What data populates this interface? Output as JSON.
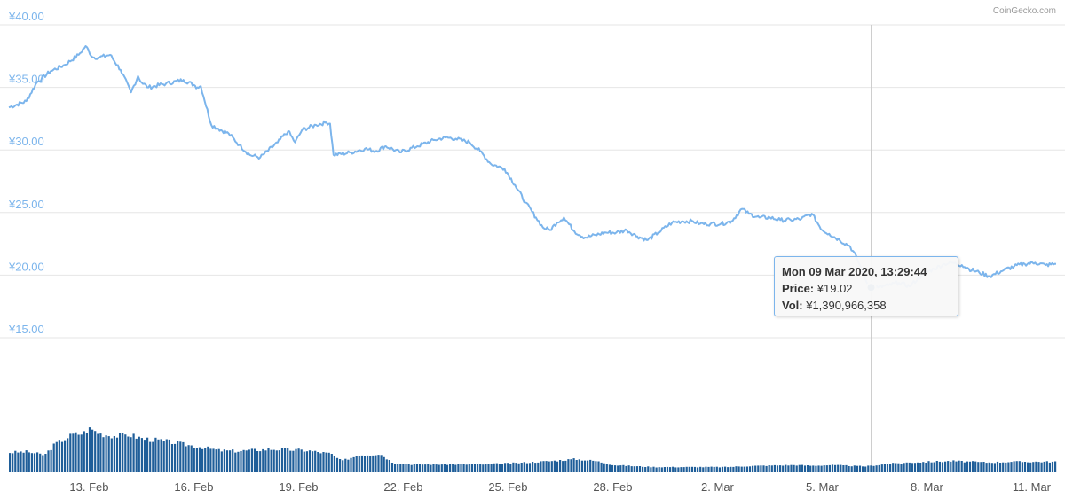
{
  "credit": "CoinGecko.com",
  "colors": {
    "line": "#7cb5ec",
    "volume": "#1f5e99",
    "grid": "#e6e6e6",
    "crosshair": "#cccccc",
    "marker": "#0f5b9e"
  },
  "tooltip": {
    "date": "Mon 09 Mar 2020, 13:29:44",
    "price_label": "Price:",
    "price": "¥19.02",
    "vol_label": "Vol:",
    "vol": "¥1,390,966,358"
  },
  "chart_data": {
    "type": "line",
    "y_axis": {
      "range": [
        15,
        40
      ],
      "ticks": [
        15,
        20,
        25,
        30,
        35,
        40
      ],
      "tick_labels": [
        "¥15.00",
        "¥20.00",
        "¥25.00",
        "¥30.00",
        "¥35.00",
        "¥40.00"
      ]
    },
    "x_axis": {
      "range_days": [
        0,
        30
      ],
      "ticks": [
        2.3,
        5.3,
        8.3,
        11.3,
        14.3,
        17.3,
        20.3,
        23.3,
        26.3,
        29.3
      ],
      "tick_labels": [
        "13. Feb",
        "16. Feb",
        "19. Feb",
        "22. Feb",
        "25. Feb",
        "28. Feb",
        "2. Mar",
        "5. Mar",
        "8. Mar",
        "11. Mar"
      ]
    },
    "grid": "horizontal",
    "series": [
      {
        "values_x": [
          0,
          0.5,
          0.8,
          1.2,
          1.6,
          2.0,
          2.2,
          2.4,
          2.6,
          2.9,
          3.2,
          3.5,
          3.7,
          3.8,
          4.0,
          4.5,
          5.0,
          5.3,
          5.4,
          5.5,
          5.8,
          6.0,
          6.3,
          6.6,
          6.9,
          7.2,
          7.7,
          8.0,
          8.2,
          8.4,
          8.8,
          9.1,
          9.2,
          9.3,
          9.8,
          10.2,
          10.5,
          10.8,
          11.2,
          11.7,
          12.2,
          12.5,
          12.8,
          13.2,
          13.5,
          13.8,
          14.2,
          14.5,
          14.8,
          15.1,
          15.3,
          15.5,
          15.7,
          15.9,
          16.2,
          16.5,
          16.8,
          17.1,
          17.4,
          17.7,
          18.0,
          18.3,
          18.6,
          19.0,
          19.3,
          19.6,
          19.8,
          20.1,
          20.4,
          20.7,
          21.0,
          21.2,
          21.5,
          21.8,
          22.1,
          22.4,
          22.7,
          23.0,
          23.3,
          23.5,
          23.8,
          24.1,
          24.3,
          24.6,
          24.9,
          25.2,
          25.5,
          25.8,
          26.2,
          26.5,
          26.8,
          27.0,
          27.3,
          27.5,
          27.8,
          28.1,
          28.5,
          28.8,
          29.1,
          29.4,
          29.7,
          30.0
        ],
        "values_y": [
          33.4,
          33.9,
          35.4,
          36.3,
          36.8,
          37.6,
          38.3,
          37.4,
          37.4,
          37.6,
          36.4,
          34.6,
          35.9,
          35.4,
          35.0,
          35.3,
          35.6,
          35.2,
          35.0,
          35.1,
          32.0,
          31.7,
          31.3,
          30.4,
          29.6,
          29.4,
          30.6,
          31.5,
          30.6,
          31.6,
          32.0,
          32.2,
          32.1,
          29.6,
          29.8,
          30.1,
          29.9,
          30.3,
          29.8,
          30.3,
          30.8,
          31.0,
          30.9,
          30.6,
          29.9,
          28.9,
          28.5,
          27.2,
          25.8,
          24.6,
          23.8,
          23.6,
          24.2,
          24.6,
          23.5,
          23.0,
          23.2,
          23.4,
          23.4,
          23.6,
          23.1,
          22.8,
          23.4,
          24.2,
          24.3,
          24.3,
          24.1,
          24.1,
          24.1,
          24.3,
          25.3,
          24.9,
          24.6,
          24.6,
          24.4,
          24.4,
          24.5,
          24.9,
          23.6,
          23.3,
          22.8,
          22.3,
          21.3,
          19.3,
          19.0,
          19.2,
          19.4,
          19.1,
          20.1,
          20.5,
          20.9,
          21.0,
          20.8,
          20.5,
          20.2,
          19.9,
          20.4,
          20.7,
          20.9,
          21.0,
          20.8,
          20.9
        ]
      }
    ],
    "volume": {
      "x": [
        0,
        0.5,
        1.0,
        1.3,
        1.8,
        2.1,
        2.3,
        2.6,
        3.0,
        3.4,
        3.8,
        4.3,
        4.6,
        5.0,
        5.5,
        6.0,
        6.5,
        7.5,
        8.5,
        9.2,
        9.5,
        10.0,
        10.6,
        11.0,
        11.5,
        12.5,
        13.5,
        14.5,
        15.5,
        16.2,
        16.8,
        17.3,
        18.0,
        18.5,
        19.0,
        19.8,
        20.5,
        21.5,
        22.5,
        23.0,
        23.5,
        24.5,
        25.2,
        25.8,
        26.4,
        27.0,
        27.5,
        28.0,
        28.7,
        30.0
      ],
      "values_rel": [
        0.3,
        0.31,
        0.26,
        0.43,
        0.57,
        0.59,
        0.66,
        0.58,
        0.55,
        0.57,
        0.51,
        0.48,
        0.46,
        0.42,
        0.38,
        0.33,
        0.32,
        0.35,
        0.33,
        0.28,
        0.17,
        0.26,
        0.28,
        0.14,
        0.12,
        0.12,
        0.12,
        0.14,
        0.17,
        0.2,
        0.17,
        0.11,
        0.09,
        0.08,
        0.08,
        0.08,
        0.08,
        0.1,
        0.11,
        0.1,
        0.11,
        0.09,
        0.13,
        0.15,
        0.16,
        0.17,
        0.16,
        0.15,
        0.16,
        0.16
      ]
    },
    "crosshair_x": 24.7,
    "marker": {
      "x": 24.7,
      "y": 19.02
    }
  }
}
